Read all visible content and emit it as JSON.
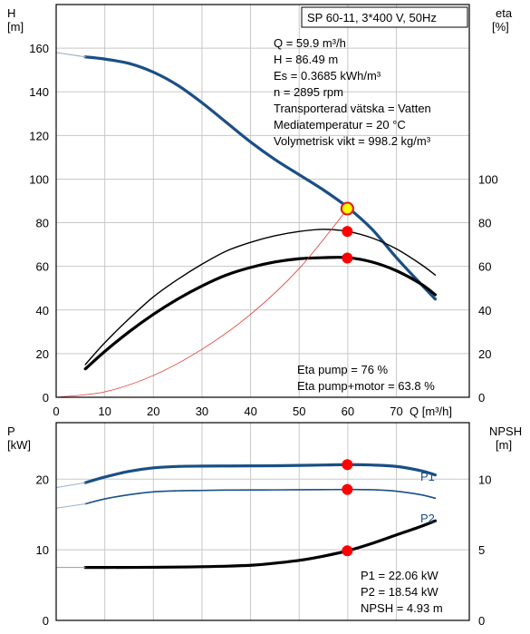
{
  "chart_data": [
    {
      "type": "line",
      "title": "SP 60-11, 3*400 V, 50Hz",
      "x_axis": {
        "label": "Q [m³/h]",
        "range": [
          0,
          85
        ],
        "ticks": [
          0,
          10,
          20,
          30,
          40,
          50,
          60,
          70
        ]
      },
      "y_left": {
        "label_top": "H",
        "label_bottom": "[m]",
        "range": [
          0,
          180
        ],
        "ticks": [
          0,
          20,
          40,
          60,
          80,
          100,
          120,
          140,
          160
        ]
      },
      "y_right": {
        "label_top": "eta",
        "label_bottom": "[%]",
        "range": [
          0,
          180
        ],
        "ticks": [
          0,
          20,
          40,
          60,
          80,
          100
        ]
      },
      "series": [
        {
          "axis": "left",
          "color": "#1a4f85",
          "x": [
            6,
            10,
            15,
            20,
            25,
            30,
            35,
            40,
            45,
            50,
            55,
            60,
            65,
            70,
            75,
            78
          ],
          "y": [
            156,
            155,
            153,
            149,
            143,
            135,
            126,
            117,
            109,
            102,
            95,
            87,
            77,
            64,
            52,
            45
          ]
        },
        {
          "axis": "left",
          "color": "#9ab3cc",
          "x": [
            0,
            6
          ],
          "y": [
            158,
            156
          ]
        },
        {
          "axis": "right",
          "color": "#000000",
          "x": [
            6,
            10,
            15,
            20,
            25,
            30,
            35,
            40,
            45,
            50,
            55,
            60,
            65,
            70,
            75,
            78
          ],
          "y": [
            15,
            25,
            36,
            46,
            54,
            61,
            67,
            71,
            74,
            76,
            77,
            76,
            73,
            68,
            61,
            56
          ]
        },
        {
          "axis": "right",
          "color": "#000000",
          "x": [
            6,
            10,
            15,
            20,
            25,
            30,
            35,
            40,
            45,
            50,
            55,
            60,
            65,
            70,
            75,
            78
          ],
          "y": [
            13,
            21,
            30,
            38,
            45,
            51,
            56,
            59.5,
            62,
            63.5,
            64,
            64,
            62,
            58,
            52,
            47
          ]
        },
        {
          "axis": "right",
          "color": "#e03a2e",
          "x": [
            0,
            10,
            20,
            30,
            40,
            50,
            60
          ],
          "y": [
            0,
            2.5,
            10,
            22,
            38,
            59,
            86.5
          ]
        }
      ],
      "markers": [
        {
          "x": 59.9,
          "y": 86.49,
          "fill": "#ffff00",
          "stroke": "#e02020"
        },
        {
          "x": 59.9,
          "y": 76,
          "fill": "#ff0000",
          "stroke": "#ff0000"
        },
        {
          "x": 59.9,
          "y": 63.8,
          "fill": "#ff0000",
          "stroke": "#ff0000"
        }
      ],
      "info_lines": [
        "Q = 59.9 m³/h",
        "H = 86.49 m",
        "Es = 0.3685 kWh/m³",
        "n = 2895 rpm",
        "Transporterad vätska = Vatten",
        "Mediatemperatur = 20 °C",
        "Volymetrisk vikt = 998.2 kg/m³"
      ],
      "eta_lines": [
        "Eta pump = 76 %",
        "Eta pump+motor = 63.8 %"
      ],
      "grid": true
    },
    {
      "type": "line",
      "x_axis": {
        "range": [
          0,
          85
        ],
        "ticks": [
          10,
          20,
          30,
          40,
          50,
          60,
          70
        ]
      },
      "y_left": {
        "label_top": "P",
        "label_bottom": "[kW]",
        "range": [
          0,
          28
        ],
        "ticks": [
          0,
          10,
          20
        ]
      },
      "y_right": {
        "label_top": "NPSH",
        "label_bottom": "[m]",
        "range": [
          0,
          14
        ],
        "ticks": [
          0,
          5,
          10
        ]
      },
      "series": [
        {
          "name": "P1",
          "axis": "left",
          "color": "#1a4f85",
          "x": [
            6,
            10,
            15,
            20,
            25,
            30,
            35,
            40,
            45,
            50,
            55,
            60,
            65,
            70,
            75,
            78
          ],
          "y": [
            19.5,
            20.3,
            21.1,
            21.6,
            21.8,
            21.85,
            21.87,
            21.88,
            21.9,
            21.95,
            22.0,
            22.06,
            22.0,
            21.8,
            21.2,
            20.6
          ]
        },
        {
          "name": "P2",
          "axis": "left",
          "color": "#1a4f85",
          "x": [
            6,
            10,
            15,
            20,
            25,
            30,
            35,
            40,
            45,
            50,
            55,
            60,
            65,
            70,
            75,
            78
          ],
          "y": [
            16.5,
            17.2,
            17.8,
            18.2,
            18.35,
            18.4,
            18.45,
            18.47,
            18.48,
            18.5,
            18.52,
            18.54,
            18.5,
            18.3,
            17.8,
            17.3
          ]
        },
        {
          "axis": "right",
          "color": "#000000",
          "x": [
            6,
            10,
            20,
            30,
            40,
            45,
            50,
            55,
            60,
            65,
            70,
            75,
            78
          ],
          "y": [
            3.75,
            3.75,
            3.76,
            3.8,
            3.9,
            4.05,
            4.25,
            4.55,
            4.93,
            5.45,
            6.05,
            6.65,
            7.05
          ]
        },
        {
          "axis": "left",
          "color": "#9ab3cc",
          "x": [
            0,
            6
          ],
          "y": [
            18.8,
            19.5
          ]
        },
        {
          "axis": "left",
          "color": "#9ab3cc",
          "x": [
            0,
            6
          ],
          "y": [
            15.9,
            16.5
          ]
        },
        {
          "axis": "right",
          "color": "#999999",
          "x": [
            0,
            6
          ],
          "y": [
            3.75,
            3.75
          ]
        }
      ],
      "markers": [
        {
          "x": 59.9,
          "y": 22.06,
          "axis": "left",
          "fill": "#ff0000",
          "stroke": "#ff0000"
        },
        {
          "x": 59.9,
          "y": 18.54,
          "axis": "left",
          "fill": "#ff0000",
          "stroke": "#ff0000"
        },
        {
          "x": 59.9,
          "y": 4.93,
          "axis": "right",
          "fill": "#ff0000",
          "stroke": "#ff0000"
        }
      ],
      "info_lines": [
        "P1 = 22.06 kW",
        "P2 = 18.54 kW",
        "NPSH = 4.93 m"
      ],
      "grid": true
    }
  ]
}
